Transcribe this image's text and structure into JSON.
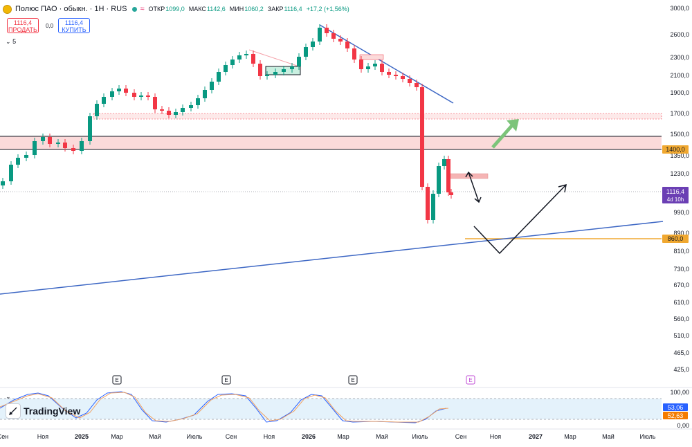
{
  "header": {
    "symbol": "Полюс ПАО · обыкн. · 1H · RUS",
    "open_label": "ОТКР",
    "open_value": "1099,0",
    "high_label": "МАКС",
    "high_value": "1142,6",
    "low_label": "МИН",
    "low_value": "1060,2",
    "close_label": "ЗАКР",
    "close_value": "1116,4",
    "change": "+17,2 (+1,56%)",
    "status_color": "#26a69a"
  },
  "trade": {
    "sell_price": "1116,4",
    "sell_label": "ПРОДАТЬ",
    "spread": "0,0",
    "buy_price": "1116,4",
    "buy_label": "КУПИТЬ"
  },
  "indicators_collapse": "5",
  "logo_text": "TradingView",
  "price_axis_ticks": [
    "3000,0",
    "2600,0",
    "2300,0",
    "2100,0",
    "1900,0",
    "1700,0",
    "1500,0",
    "1350,0",
    "1230,0",
    "990,0",
    "890,0",
    "810,0",
    "730,0",
    "670,0",
    "610,0",
    "560,0",
    "510,0",
    "465,0",
    "425,0"
  ],
  "time_axis_ticks": [
    "Сен",
    "Ноя",
    "2025",
    "Мар",
    "Май",
    "Июль",
    "Сен",
    "Ноя",
    "2026",
    "Мар",
    "Май",
    "Июль",
    "Сен",
    "Ноя",
    "2027",
    "Мар",
    "Май",
    "Июль"
  ],
  "price_labels": {
    "level_1400": "1400,0",
    "current_price": "1116,4",
    "countdown": "4d 10h",
    "level_860": "860,0"
  },
  "oscillator": {
    "axis_ticks": [
      "100,00",
      "0,00"
    ],
    "k_value": "53,06",
    "d_value": "52,63"
  },
  "events_marker": "E",
  "colors": {
    "up": "#089981",
    "down": "#f23645",
    "trend": "#3d67c4",
    "zone": "#fbdada",
    "level_orange": "#f0a830",
    "current_label": "#6b3fb4"
  },
  "chart_data": {
    "type": "candlestick",
    "timeframe": "weekly",
    "x_range": [
      "2024-09",
      "2027-07"
    ],
    "price_levels": [
      1400.0,
      860.0
    ],
    "current_price": 1116.4,
    "approx_high": 2750,
    "approx_low": 880,
    "oscillator_last": {
      "k": 53.06,
      "d": 52.63
    }
  }
}
